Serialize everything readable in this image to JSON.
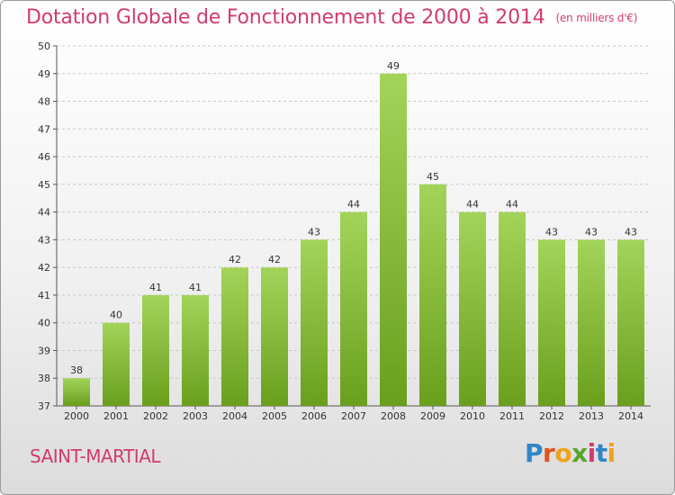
{
  "title": {
    "main": "Dotation Globale de Fonctionnement de 2000 à 2014",
    "unit": "(en milliers d'€)"
  },
  "location": "SAINT-MARTIAL",
  "logo": {
    "letters": [
      "P",
      "r",
      "o",
      "x",
      "i",
      "t",
      "i"
    ]
  },
  "colors": {
    "title": "#d33b6b",
    "bar_top": "#a3d45a",
    "bar_bottom": "#6a9f1d",
    "grid": "#c8c8c8"
  },
  "chart_data": {
    "type": "bar",
    "title": "Dotation Globale de Fonctionnement de 2000 à 2014",
    "ylabel": "",
    "xlabel": "",
    "unit": "(en milliers d'€)",
    "categories": [
      "2000",
      "2001",
      "2002",
      "2003",
      "2004",
      "2005",
      "2006",
      "2007",
      "2008",
      "2009",
      "2010",
      "2011",
      "2012",
      "2013",
      "2014"
    ],
    "values": [
      38,
      40,
      41,
      41,
      42,
      42,
      43,
      44,
      49,
      45,
      44,
      44,
      43,
      43,
      43
    ],
    "ylim": [
      37,
      50
    ],
    "yticks": [
      37,
      38,
      39,
      40,
      41,
      42,
      43,
      44,
      45,
      46,
      47,
      48,
      49,
      50
    ],
    "grid": true,
    "data_labels": true
  }
}
